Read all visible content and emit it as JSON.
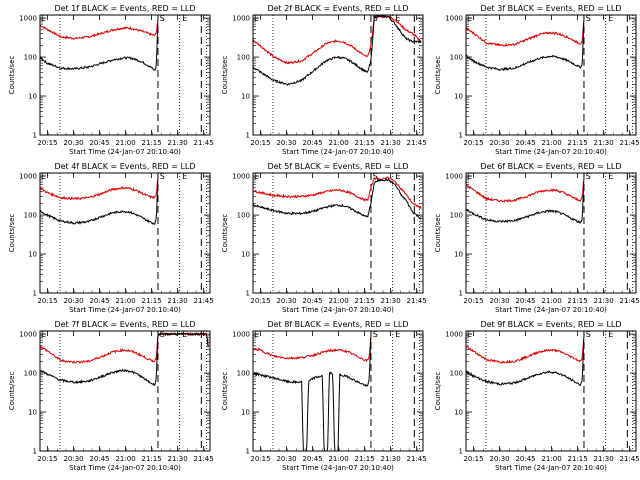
{
  "chart_data": {
    "type": "line",
    "panel_titles": [
      "Det 1f BLACK = Events, RED = LLD",
      "Det 2f BLACK = Events, RED = LLD",
      "Det 3f BLACK = Events, RED = LLD",
      "Det 4f BLACK = Events, RED = LLD",
      "Det 5f BLACK = Events, RED = LLD",
      "Det 6f BLACK = Events, RED = LLD",
      "Det 7f BLACK = Events, RED = LLD",
      "Det 8f BLACK = Events, RED = LLD",
      "Det 9f BLACK = Events, RED = LLD"
    ],
    "xlabel": "Start Time (24-Jan-07 20:10:40)",
    "ylabel": "Counts/sec",
    "x_ticks": [
      "20:15",
      "20:30",
      "20:45",
      "21:00",
      "21:15",
      "21:30",
      "21:45"
    ],
    "x_tick_minutes": [
      4.33,
      19.33,
      34.33,
      49.33,
      64.33,
      79.33,
      94.33
    ],
    "y_ticks": [
      "1",
      "10",
      "100",
      "1000"
    ],
    "ylog": true,
    "ylim": [
      1,
      1200
    ],
    "xlim_minutes": [
      0,
      98
    ],
    "markers": {
      "saa_label": "S",
      "eclipse_label": "E",
      "dotted_minutes": [
        11.5,
        80.5,
        96
      ],
      "dashed_minutes": [
        68,
        93
      ]
    },
    "series_names": [
      "Events",
      "LLD"
    ],
    "series_colors": {
      "Events": "#000000",
      "LLD": "#dd0000"
    },
    "panels": [
      {
        "events": [
          [
            0,
            100
          ],
          [
            4,
            70
          ],
          [
            12,
            52
          ],
          [
            20,
            50
          ],
          [
            28,
            55
          ],
          [
            35,
            68
          ],
          [
            42,
            85
          ],
          [
            48,
            95
          ],
          [
            52,
            95
          ],
          [
            56,
            85
          ],
          [
            60,
            70
          ],
          [
            64,
            55
          ],
          [
            66,
            45
          ],
          [
            67,
            55
          ],
          [
            68,
            1000
          ]
        ],
        "lld": [
          [
            0,
            650
          ],
          [
            4,
            520
          ],
          [
            12,
            330
          ],
          [
            20,
            300
          ],
          [
            28,
            330
          ],
          [
            35,
            400
          ],
          [
            42,
            500
          ],
          [
            48,
            560
          ],
          [
            52,
            550
          ],
          [
            56,
            500
          ],
          [
            60,
            440
          ],
          [
            64,
            380
          ],
          [
            66,
            360
          ],
          [
            67,
            400
          ],
          [
            68,
            1000
          ]
        ]
      },
      {
        "events": [
          [
            0,
            55
          ],
          [
            4,
            42
          ],
          [
            12,
            25
          ],
          [
            20,
            20
          ],
          [
            28,
            25
          ],
          [
            35,
            45
          ],
          [
            42,
            80
          ],
          [
            48,
            100
          ],
          [
            52,
            95
          ],
          [
            56,
            80
          ],
          [
            60,
            60
          ],
          [
            64,
            45
          ],
          [
            66,
            40
          ],
          [
            68,
            80
          ],
          [
            70,
            1100
          ],
          [
            78,
            1100
          ],
          [
            82,
            700
          ],
          [
            88,
            300
          ],
          [
            92,
            250
          ],
          [
            97,
            250
          ]
        ],
        "lld": [
          [
            0,
            270
          ],
          [
            4,
            200
          ],
          [
            12,
            100
          ],
          [
            20,
            70
          ],
          [
            28,
            80
          ],
          [
            35,
            130
          ],
          [
            42,
            220
          ],
          [
            48,
            260
          ],
          [
            52,
            250
          ],
          [
            56,
            200
          ],
          [
            60,
            150
          ],
          [
            64,
            110
          ],
          [
            66,
            100
          ],
          [
            68,
            200
          ],
          [
            70,
            1100
          ],
          [
            78,
            1100
          ],
          [
            82,
            900
          ],
          [
            88,
            500
          ],
          [
            92,
            400
          ],
          [
            97,
            250
          ]
        ]
      },
      {
        "events": [
          [
            0,
            110
          ],
          [
            4,
            80
          ],
          [
            12,
            55
          ],
          [
            20,
            48
          ],
          [
            28,
            52
          ],
          [
            35,
            70
          ],
          [
            42,
            92
          ],
          [
            48,
            105
          ],
          [
            52,
            102
          ],
          [
            56,
            90
          ],
          [
            60,
            75
          ],
          [
            64,
            60
          ],
          [
            66,
            55
          ],
          [
            67,
            65
          ],
          [
            68,
            1000
          ]
        ],
        "lld": [
          [
            0,
            550
          ],
          [
            4,
            420
          ],
          [
            12,
            230
          ],
          [
            20,
            200
          ],
          [
            28,
            210
          ],
          [
            35,
            280
          ],
          [
            42,
            380
          ],
          [
            48,
            420
          ],
          [
            52,
            410
          ],
          [
            56,
            360
          ],
          [
            60,
            300
          ],
          [
            64,
            240
          ],
          [
            66,
            220
          ],
          [
            67,
            260
          ],
          [
            68,
            1000
          ]
        ]
      },
      {
        "events": [
          [
            0,
            130
          ],
          [
            4,
            100
          ],
          [
            12,
            70
          ],
          [
            20,
            62
          ],
          [
            28,
            68
          ],
          [
            35,
            90
          ],
          [
            42,
            115
          ],
          [
            48,
            125
          ],
          [
            52,
            118
          ],
          [
            56,
            100
          ],
          [
            60,
            80
          ],
          [
            64,
            65
          ],
          [
            66,
            60
          ],
          [
            67,
            75
          ],
          [
            68,
            1000
          ]
        ],
        "lld": [
          [
            0,
            500
          ],
          [
            4,
            380
          ],
          [
            12,
            280
          ],
          [
            20,
            260
          ],
          [
            28,
            280
          ],
          [
            35,
            350
          ],
          [
            42,
            460
          ],
          [
            48,
            500
          ],
          [
            52,
            480
          ],
          [
            56,
            420
          ],
          [
            60,
            340
          ],
          [
            64,
            290
          ],
          [
            66,
            280
          ],
          [
            67,
            330
          ],
          [
            68,
            1000
          ]
        ]
      },
      {
        "events": [
          [
            0,
            180
          ],
          [
            4,
            160
          ],
          [
            12,
            130
          ],
          [
            20,
            110
          ],
          [
            28,
            110
          ],
          [
            35,
            125
          ],
          [
            42,
            160
          ],
          [
            48,
            180
          ],
          [
            52,
            175
          ],
          [
            56,
            150
          ],
          [
            60,
            120
          ],
          [
            64,
            95
          ],
          [
            66,
            90
          ],
          [
            68,
            200
          ],
          [
            70,
            700
          ],
          [
            74,
            800
          ],
          [
            78,
            800
          ],
          [
            82,
            600
          ],
          [
            86,
            300
          ],
          [
            88,
            250
          ],
          [
            92,
            120
          ],
          [
            97,
            80
          ]
        ],
        "lld": [
          [
            0,
            420
          ],
          [
            4,
            380
          ],
          [
            12,
            320
          ],
          [
            20,
            300
          ],
          [
            28,
            300
          ],
          [
            35,
            330
          ],
          [
            42,
            400
          ],
          [
            48,
            440
          ],
          [
            52,
            420
          ],
          [
            56,
            370
          ],
          [
            60,
            300
          ],
          [
            64,
            250
          ],
          [
            66,
            240
          ],
          [
            68,
            500
          ],
          [
            70,
            900
          ],
          [
            74,
            800
          ],
          [
            78,
            950
          ],
          [
            82,
            700
          ],
          [
            86,
            450
          ],
          [
            88,
            350
          ],
          [
            92,
            200
          ],
          [
            97,
            150
          ]
        ]
      },
      {
        "events": [
          [
            0,
            140
          ],
          [
            4,
            110
          ],
          [
            12,
            75
          ],
          [
            20,
            68
          ],
          [
            28,
            72
          ],
          [
            35,
            90
          ],
          [
            42,
            115
          ],
          [
            48,
            128
          ],
          [
            52,
            122
          ],
          [
            56,
            105
          ],
          [
            60,
            85
          ],
          [
            64,
            70
          ],
          [
            66,
            65
          ],
          [
            67,
            80
          ],
          [
            68,
            1000
          ]
        ],
        "lld": [
          [
            0,
            600
          ],
          [
            4,
            450
          ],
          [
            12,
            260
          ],
          [
            20,
            230
          ],
          [
            28,
            240
          ],
          [
            35,
            300
          ],
          [
            42,
            400
          ],
          [
            48,
            440
          ],
          [
            52,
            430
          ],
          [
            56,
            380
          ],
          [
            60,
            310
          ],
          [
            64,
            250
          ],
          [
            66,
            240
          ],
          [
            67,
            280
          ],
          [
            68,
            1000
          ]
        ]
      },
      {
        "events": [
          [
            0,
            120
          ],
          [
            4,
            95
          ],
          [
            12,
            65
          ],
          [
            20,
            58
          ],
          [
            28,
            62
          ],
          [
            35,
            80
          ],
          [
            42,
            105
          ],
          [
            48,
            118
          ],
          [
            52,
            112
          ],
          [
            56,
            95
          ],
          [
            60,
            72
          ],
          [
            64,
            55
          ],
          [
            66,
            50
          ],
          [
            67,
            70
          ],
          [
            68,
            1000
          ],
          [
            96,
            1000
          ],
          [
            97,
            420
          ]
        ],
        "lld": [
          [
            0,
            480
          ],
          [
            4,
            380
          ],
          [
            12,
            210
          ],
          [
            20,
            190
          ],
          [
            28,
            200
          ],
          [
            35,
            260
          ],
          [
            42,
            350
          ],
          [
            48,
            390
          ],
          [
            52,
            370
          ],
          [
            56,
            320
          ],
          [
            60,
            260
          ],
          [
            64,
            210
          ],
          [
            66,
            200
          ],
          [
            67,
            250
          ],
          [
            68,
            1000
          ],
          [
            96,
            1000
          ],
          [
            97,
            500
          ]
        ]
      },
      {
        "events": [
          [
            0,
            100
          ],
          [
            4,
            90
          ],
          [
            12,
            75
          ],
          [
            20,
            60
          ],
          [
            25,
            58
          ],
          [
            28,
            60
          ],
          [
            29,
            1
          ],
          [
            31,
            1
          ],
          [
            32,
            60
          ],
          [
            35,
            75
          ],
          [
            40,
            85
          ],
          [
            41,
            1
          ],
          [
            43,
            1
          ],
          [
            44,
            100
          ],
          [
            46,
            100
          ],
          [
            47,
            1
          ],
          [
            49,
            1
          ],
          [
            50,
            90
          ],
          [
            55,
            80
          ],
          [
            60,
            60
          ],
          [
            64,
            50
          ],
          [
            66,
            45
          ],
          [
            67,
            70
          ],
          [
            68,
            1000
          ]
        ],
        "lld": [
          [
            0,
            420
          ],
          [
            4,
            390
          ],
          [
            12,
            270
          ],
          [
            20,
            240
          ],
          [
            28,
            250
          ],
          [
            35,
            290
          ],
          [
            42,
            360
          ],
          [
            48,
            390
          ],
          [
            52,
            380
          ],
          [
            56,
            330
          ],
          [
            60,
            270
          ],
          [
            64,
            220
          ],
          [
            66,
            210
          ],
          [
            67,
            260
          ],
          [
            68,
            1000
          ]
        ]
      },
      {
        "events": [
          [
            0,
            110
          ],
          [
            4,
            85
          ],
          [
            12,
            60
          ],
          [
            20,
            52
          ],
          [
            28,
            56
          ],
          [
            35,
            72
          ],
          [
            42,
            96
          ],
          [
            48,
            108
          ],
          [
            52,
            102
          ],
          [
            56,
            88
          ],
          [
            60,
            70
          ],
          [
            64,
            55
          ],
          [
            66,
            50
          ],
          [
            67,
            65
          ],
          [
            68,
            1000
          ]
        ],
        "lld": [
          [
            0,
            480
          ],
          [
            4,
            370
          ],
          [
            12,
            220
          ],
          [
            20,
            190
          ],
          [
            28,
            200
          ],
          [
            35,
            260
          ],
          [
            42,
            350
          ],
          [
            48,
            390
          ],
          [
            52,
            380
          ],
          [
            56,
            330
          ],
          [
            60,
            270
          ],
          [
            64,
            220
          ],
          [
            66,
            200
          ],
          [
            67,
            250
          ],
          [
            68,
            1000
          ]
        ]
      }
    ]
  }
}
